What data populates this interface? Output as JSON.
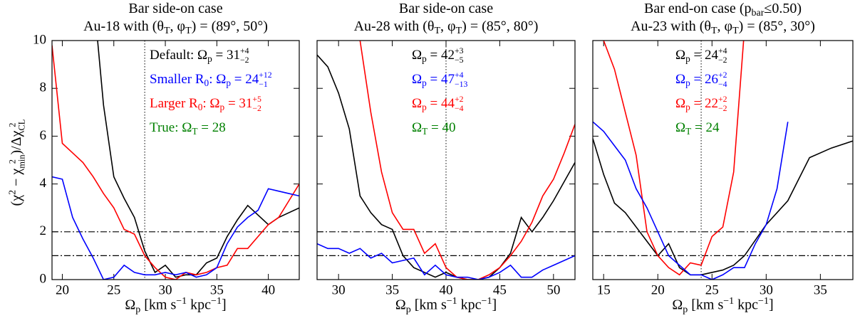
{
  "chart_data": [
    {
      "type": "line",
      "title": [
        [
          {
            "text": "Bar side-on case"
          }
        ],
        [
          {
            "text": "Au-18 with (θ"
          },
          {
            "text": "T",
            "pos": "sub"
          },
          {
            "text": ", φ"
          },
          {
            "text": "T",
            "pos": "sub"
          },
          {
            "text": ") = (89°, 50°)"
          }
        ]
      ],
      "xlabel": [
        {
          "text": "Ω"
        },
        {
          "text": "p",
          "pos": "sub"
        },
        {
          "text": " [km s"
        },
        {
          "text": "−1",
          "pos": "sup"
        },
        {
          "text": " kpc"
        },
        {
          "text": "−1",
          "pos": "sup"
        },
        {
          "text": "]"
        }
      ],
      "ylabel": [
        {
          "text": "(χ"
        },
        {
          "text": "2",
          "pos": "sup"
        },
        {
          "text": " − χ"
        },
        {
          "sup": "2",
          "sub": "min"
        },
        {
          "text": ")/Δχ"
        },
        {
          "sup": "2",
          "sub": "CL"
        }
      ],
      "xlim": [
        19,
        43
      ],
      "xticks": [
        20,
        25,
        30,
        35,
        40
      ],
      "ylim": [
        0,
        10
      ],
      "yticks": [
        0,
        2,
        4,
        6,
        8,
        10
      ],
      "ytick_labels": true,
      "hlines": [
        1,
        2
      ],
      "vline": 28,
      "series": [
        {
          "color": "#000000",
          "x": [
            23,
            24,
            25,
            26,
            27,
            28,
            29,
            30,
            31,
            32,
            33,
            34,
            35,
            36,
            37,
            38,
            39,
            40,
            41,
            42,
            43
          ],
          "values": [
            12,
            7.3,
            4.3,
            3.4,
            2.6,
            1.2,
            0.3,
            0.6,
            0.1,
            0.2,
            0.2,
            0.7,
            0.9,
            1.8,
            2.5,
            3.1,
            2.7,
            2.3,
            2.6,
            2.8,
            3.0
          ]
        },
        {
          "color": "#ff0000",
          "x": [
            19,
            20,
            21,
            22,
            23,
            24,
            25,
            26,
            27,
            28,
            29,
            30,
            31,
            32,
            33,
            34,
            35,
            36,
            37,
            38,
            39,
            40,
            41,
            42,
            43
          ],
          "values": [
            9.8,
            5.7,
            5.3,
            4.9,
            4.3,
            3.6,
            3.0,
            2.1,
            1.9,
            1.0,
            0.5,
            0.1,
            0.0,
            0.3,
            0.2,
            0.3,
            0.5,
            0.6,
            1.3,
            1.3,
            1.8,
            2.3,
            2.6,
            3.3,
            4.0
          ]
        },
        {
          "color": "#0000ff",
          "x": [
            19,
            20,
            21,
            22,
            23,
            24,
            25,
            26,
            27,
            28,
            29,
            30,
            31,
            32,
            33,
            34,
            35,
            36,
            37,
            38,
            39,
            40,
            41,
            42,
            43
          ],
          "values": [
            4.3,
            4.2,
            2.6,
            1.7,
            0.9,
            0.0,
            0.1,
            0.6,
            0.3,
            0.2,
            0.2,
            0.3,
            0.2,
            0.3,
            0.1,
            0.2,
            0.5,
            1.5,
            2.2,
            2.6,
            2.9,
            3.8,
            3.7,
            3.6,
            3.5
          ]
        }
      ],
      "annotations": [
        {
          "color": "#000000",
          "parts": [
            {
              "text": "Default: Ω"
            },
            {
              "text": "p",
              "pos": "sub"
            },
            {
              "text": " = 31"
            },
            {
              "sup": "+4",
              "sub": "−2"
            }
          ]
        },
        {
          "color": "#0000ff",
          "parts": [
            {
              "text": "Smaller R"
            },
            {
              "text": "0",
              "pos": "sub"
            },
            {
              "text": ": Ω"
            },
            {
              "text": "p",
              "pos": "sub"
            },
            {
              "text": " = 24"
            },
            {
              "sup": "+12",
              "sub": "−1"
            }
          ]
        },
        {
          "color": "#ff0000",
          "parts": [
            {
              "text": "Larger R"
            },
            {
              "text": "0",
              "pos": "sub"
            },
            {
              "text": ": Ω"
            },
            {
              "text": "p",
              "pos": "sub"
            },
            {
              "text": " = 31"
            },
            {
              "sup": "+5",
              "sub": "−2"
            }
          ]
        },
        {
          "color": "#008000",
          "parts": [
            {
              "text": "True: Ω"
            },
            {
              "text": "T",
              "pos": "sub"
            },
            {
              "text": " = 28"
            }
          ]
        }
      ]
    },
    {
      "type": "line",
      "title": [
        [
          {
            "text": "Bar side-on case"
          }
        ],
        [
          {
            "text": "Au-28 with (θ"
          },
          {
            "text": "T",
            "pos": "sub"
          },
          {
            "text": ", φ"
          },
          {
            "text": "T",
            "pos": "sub"
          },
          {
            "text": ") = (85°, 80°)"
          }
        ]
      ],
      "xlabel": [
        {
          "text": "Ω"
        },
        {
          "text": "p",
          "pos": "sub"
        },
        {
          "text": " [km s"
        },
        {
          "text": "−1",
          "pos": "sup"
        },
        {
          "text": " kpc"
        },
        {
          "text": "−1",
          "pos": "sup"
        },
        {
          "text": "]"
        }
      ],
      "xlim": [
        28,
        52
      ],
      "xticks": [
        30,
        35,
        40,
        45,
        50
      ],
      "ylim": [
        0,
        10
      ],
      "yticks": [
        0,
        2,
        4,
        6,
        8,
        10
      ],
      "ytick_labels": false,
      "hlines": [
        1,
        2
      ],
      "vline": 40,
      "series": [
        {
          "color": "#000000",
          "x": [
            28,
            29,
            30,
            31,
            32,
            33,
            34,
            35,
            36,
            37,
            38,
            39,
            40,
            41,
            42,
            43,
            44,
            45,
            46,
            47,
            48,
            49,
            50,
            51,
            52
          ],
          "values": [
            9.4,
            8.9,
            7.8,
            6.3,
            3.5,
            2.8,
            2.3,
            2.1,
            1.0,
            0.5,
            0.3,
            0.1,
            0.3,
            0.1,
            0.0,
            0.0,
            0.1,
            0.5,
            1.1,
            2.6,
            2.0,
            2.6,
            3.3,
            4.1,
            4.9
          ]
        },
        {
          "color": "#ff0000",
          "x": [
            31,
            32,
            33,
            34,
            35,
            36,
            37,
            38,
            39,
            40,
            41,
            42,
            43,
            44,
            45,
            46,
            47,
            48,
            49,
            50,
            51,
            52
          ],
          "values": [
            12,
            10,
            7.0,
            4.5,
            2.8,
            2.1,
            2.1,
            1.1,
            1.5,
            0.5,
            0.1,
            0.0,
            0.0,
            0.2,
            0.5,
            1.0,
            1.6,
            2.4,
            3.5,
            4.2,
            5.3,
            6.5
          ]
        },
        {
          "color": "#0000ff",
          "x": [
            28,
            29,
            30,
            31,
            32,
            33,
            34,
            35,
            36,
            37,
            38,
            39,
            40,
            41,
            42,
            43,
            44,
            45,
            46,
            47,
            48,
            49,
            50,
            51,
            52
          ],
          "values": [
            1.5,
            1.3,
            1.3,
            1.1,
            1.3,
            0.9,
            1.1,
            0.7,
            0.8,
            0.9,
            0.2,
            0.6,
            0.2,
            0.1,
            0.1,
            0.0,
            0.1,
            0.3,
            0.6,
            0.1,
            0.1,
            0.4,
            0.6,
            0.8,
            1.0
          ]
        }
      ],
      "annotations": [
        {
          "color": "#000000",
          "parts": [
            {
              "text": "Ω"
            },
            {
              "text": "p",
              "pos": "sub"
            },
            {
              "text": " = 42"
            },
            {
              "sup": "+3",
              "sub": "−5"
            }
          ]
        },
        {
          "color": "#0000ff",
          "parts": [
            {
              "text": "Ω"
            },
            {
              "text": "p",
              "pos": "sub"
            },
            {
              "text": " = 47"
            },
            {
              "sup": "+4",
              "sub": "−13"
            }
          ]
        },
        {
          "color": "#ff0000",
          "parts": [
            {
              "text": "Ω"
            },
            {
              "text": "p",
              "pos": "sub"
            },
            {
              "text": " = 44"
            },
            {
              "sup": "+2",
              "sub": "−4"
            }
          ]
        },
        {
          "color": "#008000",
          "parts": [
            {
              "text": "Ω"
            },
            {
              "text": "T",
              "pos": "sub"
            },
            {
              "text": " = 40"
            }
          ]
        }
      ]
    },
    {
      "type": "line",
      "title": [
        [
          {
            "text": "Bar end-on case (p"
          },
          {
            "text": "bar",
            "pos": "sub"
          },
          {
            "text": "≤0.50)"
          }
        ],
        [
          {
            "text": "Au-23 with (θ"
          },
          {
            "text": "T",
            "pos": "sub"
          },
          {
            "text": ", φ"
          },
          {
            "text": "T",
            "pos": "sub"
          },
          {
            "text": ") = (85°, 30°)"
          }
        ]
      ],
      "xlabel": [
        {
          "text": "Ω"
        },
        {
          "text": "p",
          "pos": "sub"
        },
        {
          "text": " [km s"
        },
        {
          "text": "−1",
          "pos": "sup"
        },
        {
          "text": " kpc"
        },
        {
          "text": "−1",
          "pos": "sup"
        },
        {
          "text": "]"
        }
      ],
      "xlim": [
        14,
        38
      ],
      "xticks": [
        15,
        20,
        25,
        30,
        35
      ],
      "ylim": [
        0,
        10
      ],
      "yticks": [
        0,
        2,
        4,
        6,
        8,
        10
      ],
      "ytick_labels": false,
      "hlines": [
        1,
        2
      ],
      "vline": 24,
      "series": [
        {
          "color": "#000000",
          "x": [
            14,
            15,
            16,
            17,
            18,
            19,
            20,
            21,
            22,
            23,
            24,
            25,
            26,
            27,
            28,
            30,
            32,
            34,
            36,
            38
          ],
          "values": [
            5.9,
            4.4,
            3.2,
            2.8,
            2.2,
            1.6,
            1.0,
            1.5,
            0.5,
            0.2,
            0.2,
            0.3,
            0.4,
            0.6,
            1.0,
            2.3,
            3.3,
            5.1,
            5.5,
            5.8
          ]
        },
        {
          "color": "#ff0000",
          "x": [
            15,
            16,
            17,
            18,
            19,
            20,
            21,
            22,
            23,
            24,
            25,
            26,
            27,
            28
          ],
          "values": [
            10,
            8.8,
            7.0,
            5.2,
            2.0,
            1.0,
            0.5,
            0.2,
            0.7,
            0.6,
            1.8,
            2.2,
            4.5,
            10.5
          ]
        },
        {
          "color": "#0000ff",
          "x": [
            14,
            15,
            16,
            17,
            18,
            19,
            20,
            21,
            22,
            23,
            24,
            25,
            26,
            27,
            28,
            29,
            30,
            31,
            32
          ],
          "values": [
            6.6,
            6.2,
            5.6,
            5.0,
            3.8,
            3.0,
            2.0,
            1.0,
            0.6,
            0.2,
            0.2,
            0.0,
            0.2,
            0.5,
            0.5,
            1.5,
            2.3,
            3.8,
            6.6
          ]
        }
      ],
      "annotations": [
        {
          "color": "#000000",
          "parts": [
            {
              "text": "Ω"
            },
            {
              "text": "p",
              "pos": "sub"
            },
            {
              "text": " = 24"
            },
            {
              "sup": "+4",
              "sub": "−2"
            }
          ]
        },
        {
          "color": "#0000ff",
          "parts": [
            {
              "text": "Ω"
            },
            {
              "text": "p",
              "pos": "sub"
            },
            {
              "text": " = 26"
            },
            {
              "sup": "+2",
              "sub": "−4"
            }
          ]
        },
        {
          "color": "#ff0000",
          "parts": [
            {
              "text": "Ω"
            },
            {
              "text": "p",
              "pos": "sub"
            },
            {
              "text": " = 22"
            },
            {
              "sup": "+2",
              "sub": "−2"
            }
          ]
        },
        {
          "color": "#008000",
          "parts": [
            {
              "text": "Ω"
            },
            {
              "text": "T",
              "pos": "sub"
            },
            {
              "text": " = 24"
            }
          ]
        }
      ]
    }
  ]
}
